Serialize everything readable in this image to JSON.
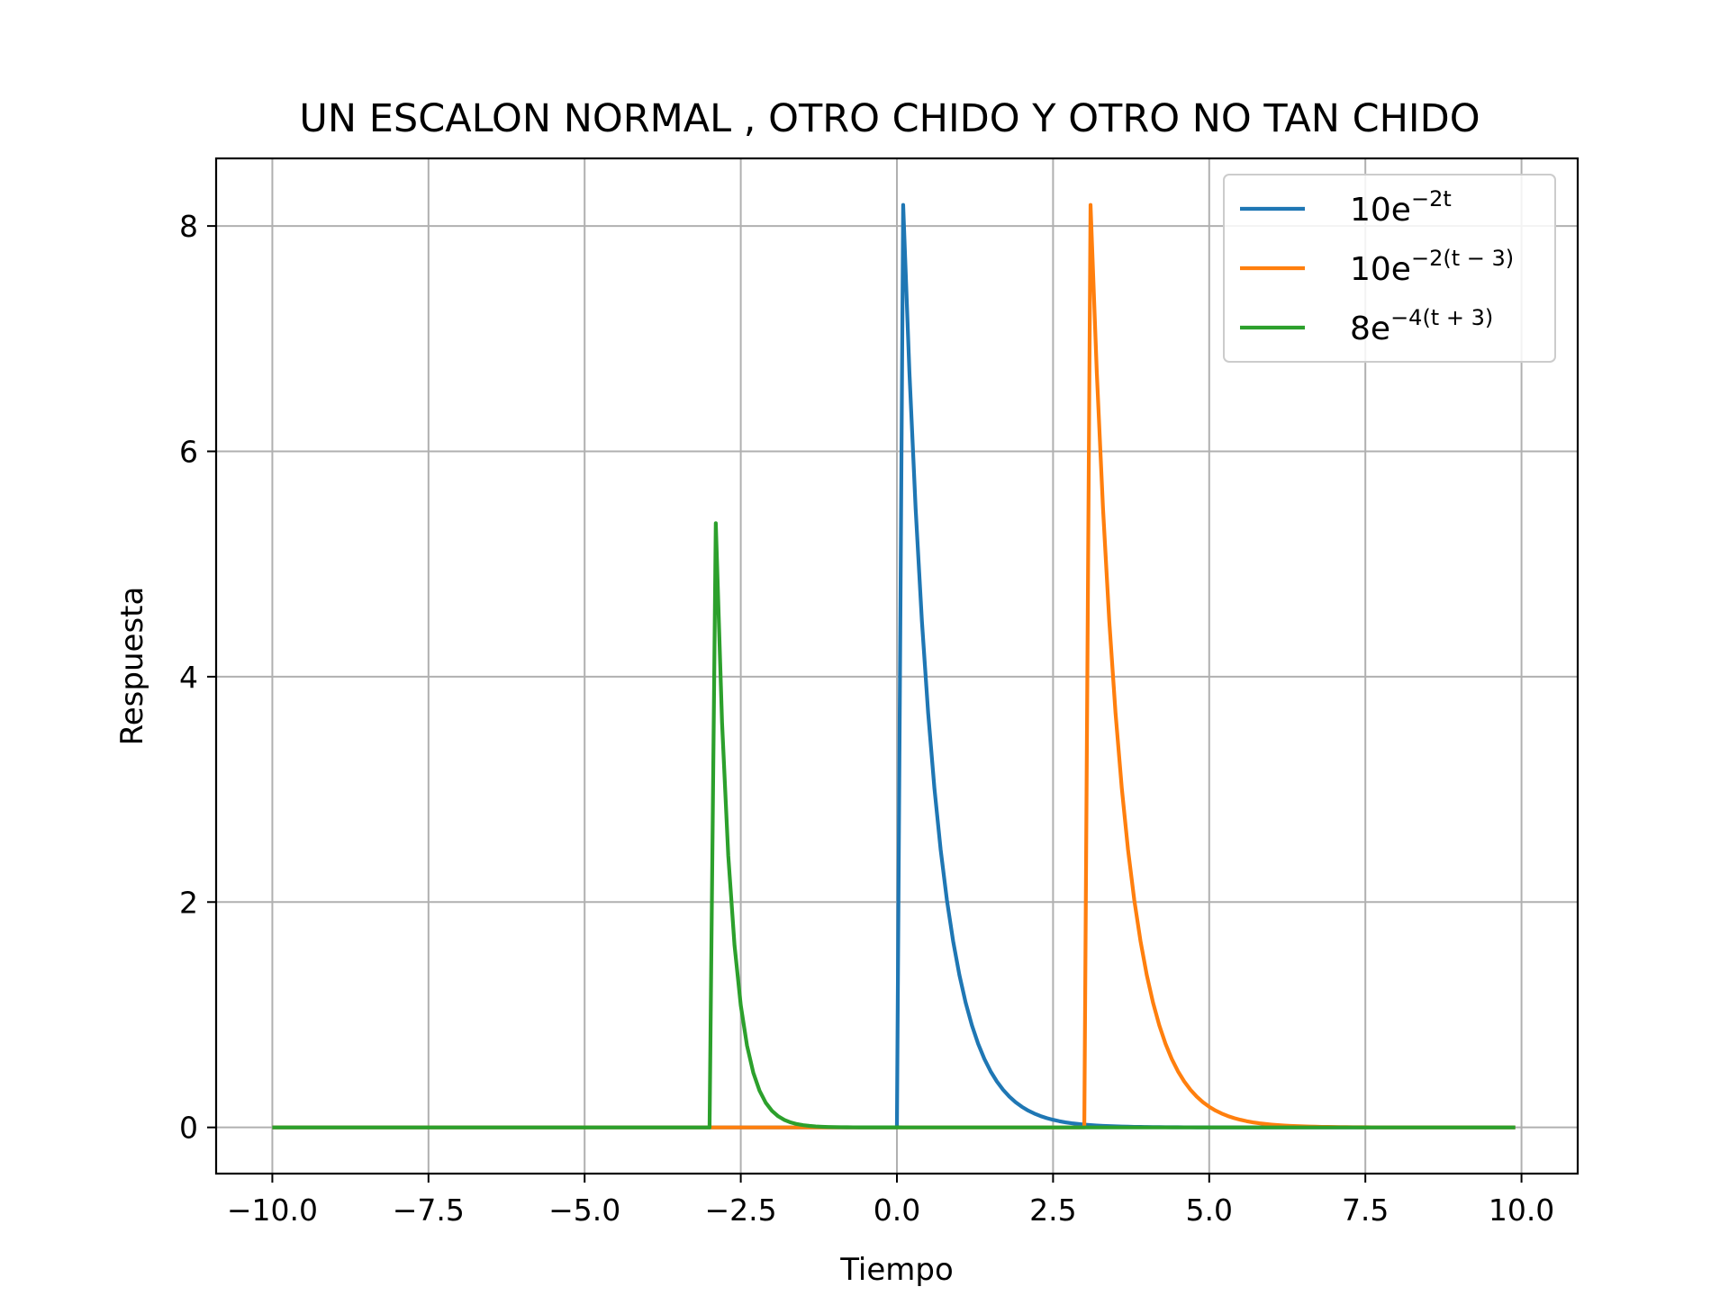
{
  "chart_data": {
    "type": "line",
    "title": "UN ESCALON NORMAL , OTRO CHIDO Y OTRO NO TAN CHIDO",
    "xlabel": "Tiempo",
    "ylabel": "Respuesta",
    "xlim": [
      -10.9,
      10.9
    ],
    "ylim": [
      -0.41,
      8.6
    ],
    "xticks": [
      -10.0,
      -7.5,
      -5.0,
      -2.5,
      0.0,
      2.5,
      5.0,
      7.5,
      10.0
    ],
    "xtick_labels": [
      "−10.0",
      "−7.5",
      "−5.0",
      "−2.5",
      "0.0",
      "2.5",
      "5.0",
      "7.5",
      "10.0"
    ],
    "yticks": [
      0,
      2,
      4,
      6,
      8
    ],
    "ytick_labels": [
      "0",
      "2",
      "4",
      "6",
      "8"
    ],
    "grid": true,
    "legend_position": "top-right",
    "x_range": [
      -10.0,
      9.9
    ],
    "x_step": 0.1,
    "series": [
      {
        "name": "10e^{-2t}",
        "legend_base": "10e",
        "legend_exp": "−2t",
        "color": "#1f77b4",
        "amplitude": 10,
        "rate": 2,
        "onset": 0
      },
      {
        "name": "10e^{-2(t-3)}",
        "legend_base": "10e",
        "legend_exp": "−2(t − 3)",
        "color": "#ff7f0e",
        "amplitude": 10,
        "rate": 2,
        "onset": 3
      },
      {
        "name": "8e^{-4(t+3)}",
        "legend_base": "8e",
        "legend_exp": "−4(t + 3)",
        "color": "#2ca02c",
        "amplitude": 8,
        "rate": 4,
        "onset": -3
      }
    ]
  }
}
